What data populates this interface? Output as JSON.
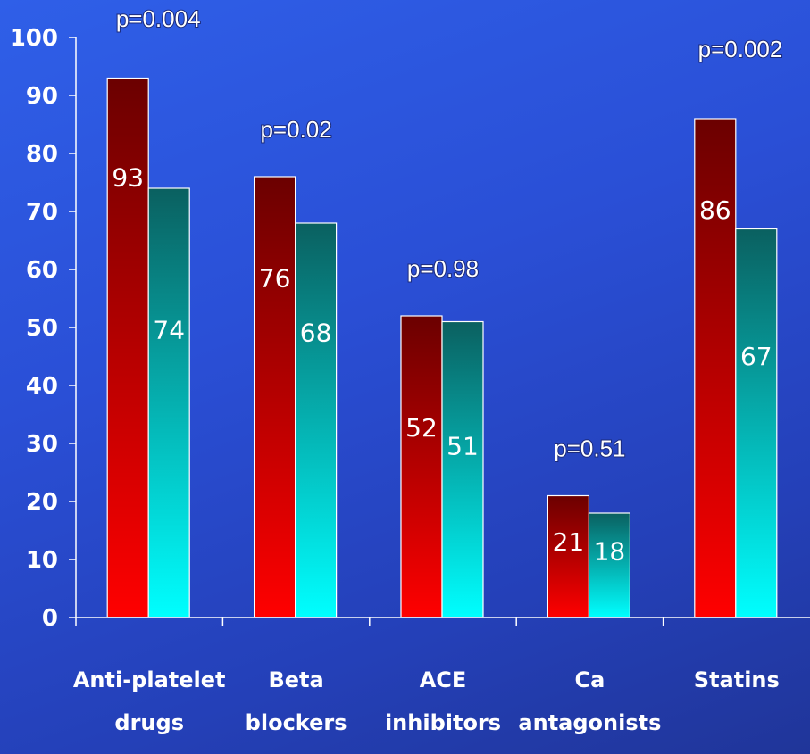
{
  "chart_data": {
    "type": "bar",
    "categories": [
      [
        "Anti-platelet",
        "drugs"
      ],
      [
        "Beta",
        "blockers"
      ],
      [
        "ACE",
        "inhibitors"
      ],
      [
        "Ca",
        "antagonists"
      ],
      [
        "Statins"
      ]
    ],
    "series": [
      {
        "values": [
          93,
          76,
          52,
          21,
          86
        ],
        "color_top": "#6b0000",
        "color_bottom": "#ff0000"
      },
      {
        "values": [
          74,
          68,
          51,
          18,
          67
        ],
        "color_top": "#0a6060",
        "color_bottom": "#00ffff"
      }
    ],
    "p_values": [
      "p=0.004",
      "p=0.02",
      "p=0.98",
      "p=0.51",
      "p=0.002"
    ],
    "ylim": [
      0,
      100
    ],
    "yticks": [
      0,
      10,
      20,
      30,
      40,
      50,
      60,
      70,
      80,
      90,
      100
    ],
    "title": "",
    "xlabel": "",
    "ylabel": "",
    "grid": false,
    "background": "#2a4fd6"
  }
}
